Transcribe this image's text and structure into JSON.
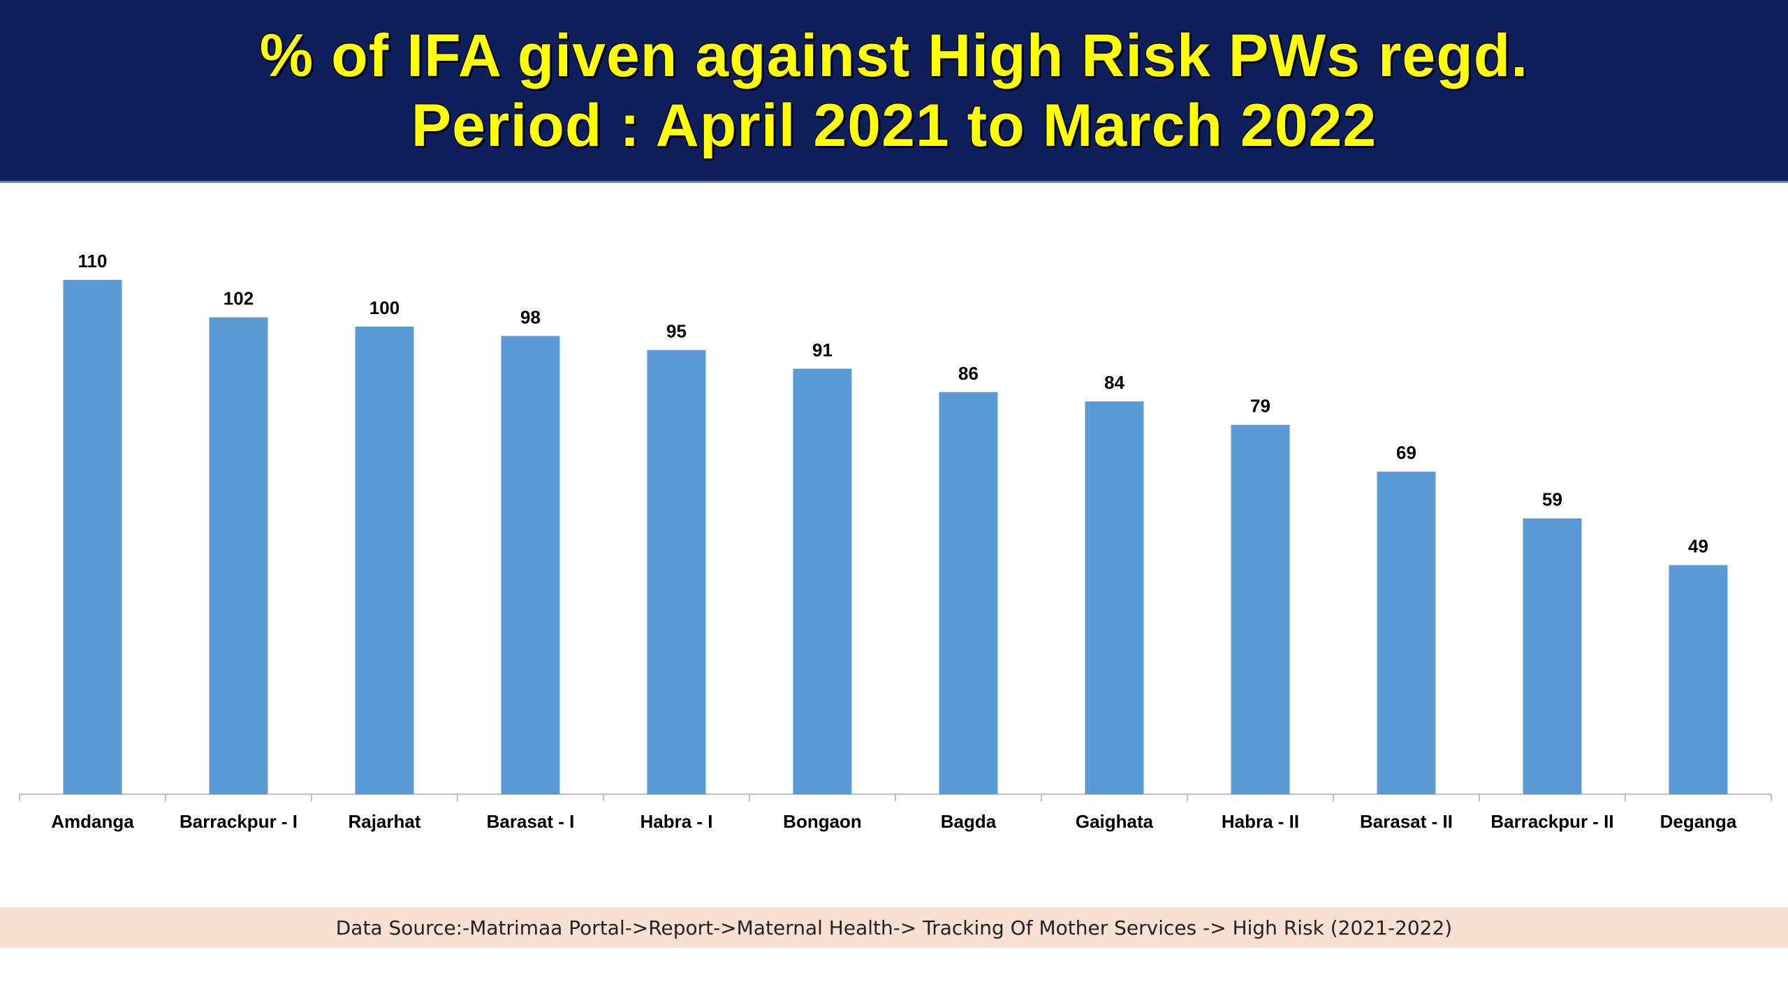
{
  "header": {
    "title_line1": "% of IFA given against High Risk PWs regd.",
    "title_line2": "Period : April 2021 to March 2022"
  },
  "footer": {
    "source": "Data Source:-Matrimaa Portal->Report->Maternal Health-> Tracking Of Mother Services -> High Risk (2021-2022)"
  },
  "colors": {
    "header_bg": "#0f1f5c",
    "title": "#ffff00",
    "bar": "#5b9bd5",
    "footer_bg": "#f8e0d2"
  },
  "chart_data": {
    "type": "bar",
    "title": "% of IFA given against High Risk PWs regd.",
    "subtitle": "Period : April 2021 to March 2022",
    "categories": [
      "Amdanga",
      "Barrackpur - I",
      "Rajarhat",
      "Barasat - I",
      "Habra - I",
      "Bongaon",
      "Bagda",
      "Gaighata",
      "Habra - II",
      "Barasat - II",
      "Barrackpur - II",
      "Deganga"
    ],
    "values": [
      110,
      102,
      100,
      98,
      95,
      91,
      86,
      84,
      79,
      69,
      59,
      49
    ],
    "xlabel": "",
    "ylabel": "",
    "ylim": [
      0,
      120
    ],
    "grid": false,
    "data_labels": true
  }
}
